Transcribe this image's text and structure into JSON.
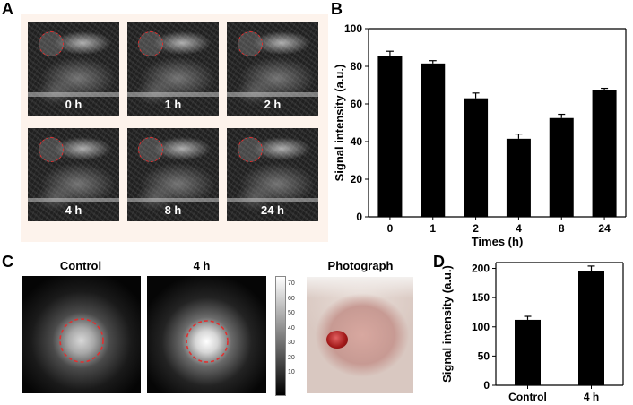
{
  "panels": {
    "a": "A",
    "b": "B",
    "c": "C",
    "d": "D"
  },
  "mri_tiles": [
    {
      "label": "0 h"
    },
    {
      "label": "1 h"
    },
    {
      "label": "2 h"
    },
    {
      "label": "4 h"
    },
    {
      "label": "8 h"
    },
    {
      "label": "24 h"
    }
  ],
  "fluorescence": {
    "control_label": "Control",
    "t4_label": "4 h",
    "photo_label": "Photograph",
    "colorbar_ticks": [
      "70",
      "60",
      "50",
      "40",
      "30",
      "20",
      "10"
    ]
  },
  "chart_data": [
    {
      "type": "bar",
      "panel": "B",
      "categories": [
        "0",
        "1",
        "2",
        "4",
        "8",
        "24"
      ],
      "values": [
        85.5,
        81.5,
        63,
        41.5,
        52.5,
        67.5
      ],
      "errors": [
        2.5,
        1.5,
        2.8,
        2.5,
        2.0,
        0.8
      ],
      "title": "",
      "xlabel": "Times (h)",
      "ylabel": "Signal intensity (a.u.)",
      "ylim": [
        0,
        100
      ],
      "yticks": [
        0,
        20,
        40,
        60,
        80,
        100
      ],
      "bar_color": "#000000"
    },
    {
      "type": "bar",
      "panel": "D",
      "categories": [
        "Control",
        "4 h"
      ],
      "values": [
        112,
        196
      ],
      "errors": [
        6,
        8
      ],
      "title": "",
      "xlabel": "",
      "ylabel": "Signal intensity (a.u.)",
      "ylim": [
        0,
        210
      ],
      "yticks": [
        0,
        50,
        100,
        150,
        200
      ],
      "bar_color": "#000000"
    }
  ]
}
